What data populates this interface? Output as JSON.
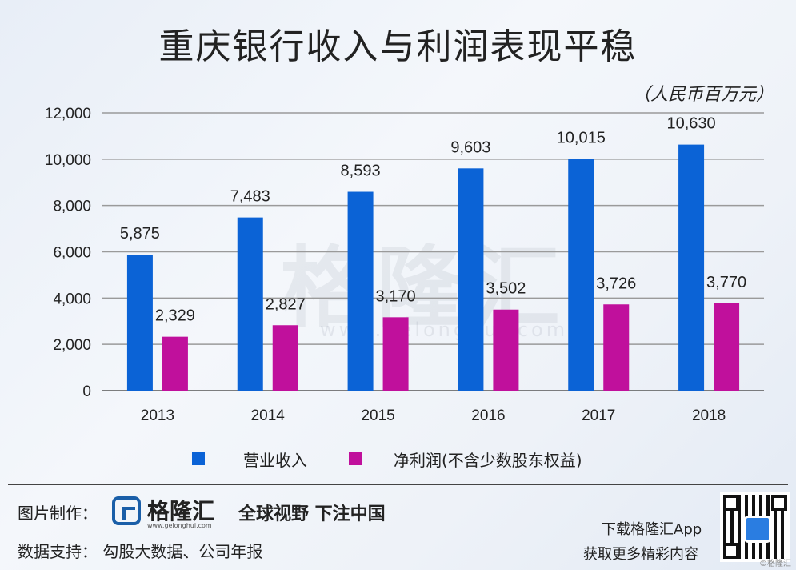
{
  "title": "重庆银行收入与利润表现平稳",
  "unit_label": "（人民币百万元）",
  "chart_data": {
    "type": "bar",
    "categories": [
      "2013",
      "2014",
      "2015",
      "2016",
      "2017",
      "2018"
    ],
    "series": [
      {
        "name": "营业收入",
        "values": [
          5875,
          7483,
          8593,
          9603,
          10015,
          10630
        ],
        "color": "#0b63d6"
      },
      {
        "name": "净利润(不含少数股东权益)",
        "values": [
          2329,
          2827,
          3170,
          3502,
          3726,
          3770
        ],
        "color": "#c0109c"
      }
    ],
    "value_labels": [
      [
        "5,875",
        "7,483",
        "8,593",
        "9,603",
        "10,015",
        "10,630"
      ],
      [
        "2,329",
        "2,827",
        "3,170",
        "3,502",
        "3,726",
        "3,770"
      ]
    ],
    "yticks": [
      0,
      2000,
      4000,
      6000,
      8000,
      10000,
      12000
    ],
    "ytick_labels": [
      "0",
      "2,000",
      "4,000",
      "6,000",
      "8,000",
      "10,000",
      "12,000"
    ],
    "ylim": [
      0,
      12000
    ],
    "grid": true,
    "legend_position": "bottom"
  },
  "watermark": {
    "text": "格隆汇",
    "url": "www.gelonghui.com"
  },
  "footer": {
    "made_by_label": "图片制作：",
    "data_support": "数据支持：  勾股大数据、公司年报",
    "logo_name": "格隆汇",
    "logo_url": "www.gelonghui.com",
    "slogan": "全球视野 下注中国",
    "app_line1": "下载格隆汇App",
    "app_line2": "获取更多精彩内容",
    "corner_mark": "©格隆汇"
  }
}
